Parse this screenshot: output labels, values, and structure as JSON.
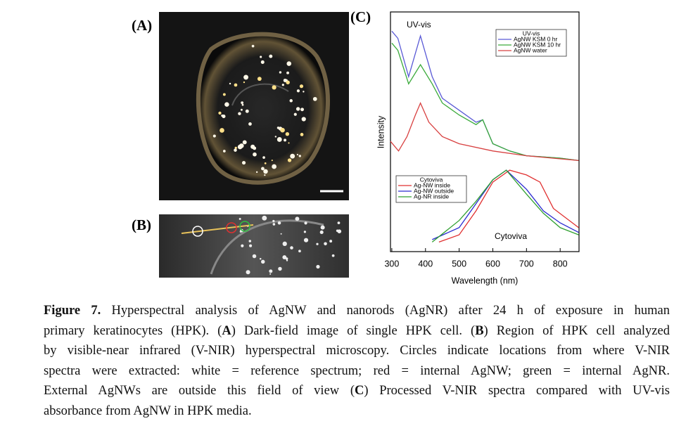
{
  "figure": {
    "panel_labels": [
      "(A)",
      "(B)",
      "(C)"
    ]
  },
  "chart_data": {
    "type": "line",
    "annotations": [
      "UV-vis",
      "Cytoviva"
    ],
    "xlabel": "Wavelength (nm)",
    "ylabel": "Intensity",
    "xlim": [
      296,
      856
    ],
    "ylim": [
      0,
      1
    ],
    "xticks": [
      300,
      400,
      500,
      600,
      700,
      800
    ],
    "series_groups": [
      {
        "title": "UV-vis",
        "series": [
          {
            "name": "AgNW KSM 0 hr",
            "color": "#5a5ad6",
            "x": [
              300,
              318,
              350,
              385,
              420,
              450,
              500,
              550,
              570,
              600,
              650,
              700,
              800,
              855
            ],
            "values": [
              0.92,
              0.89,
              0.73,
              0.9,
              0.73,
              0.64,
              0.59,
              0.54,
              0.55,
              0.45,
              0.42,
              0.4,
              0.39,
              0.38
            ]
          },
          {
            "name": "AgNW KSM 10 hr",
            "color": "#3aaa3a",
            "x": [
              300,
              318,
              350,
              385,
              420,
              450,
              500,
              550,
              570,
              600,
              650,
              700,
              800,
              855
            ],
            "values": [
              0.87,
              0.84,
              0.7,
              0.78,
              0.7,
              0.62,
              0.57,
              0.53,
              0.55,
              0.45,
              0.42,
              0.4,
              0.39,
              0.38
            ]
          },
          {
            "name": "AgNW water",
            "color": "#d84040",
            "x": [
              296,
              320,
              345,
              370,
              385,
              410,
              450,
              500,
              600,
              700,
              855
            ],
            "values": [
              0.46,
              0.42,
              0.48,
              0.57,
              0.62,
              0.54,
              0.48,
              0.45,
              0.42,
              0.4,
              0.38
            ]
          }
        ]
      },
      {
        "title": "Cytoviva",
        "series": [
          {
            "name": "Ag-NW inside",
            "color": "#e03030",
            "x": [
              440,
              500,
              550,
              600,
              650,
              700,
              740,
              780,
              855
            ],
            "values": [
              0.04,
              0.07,
              0.17,
              0.29,
              0.34,
              0.32,
              0.29,
              0.18,
              0.1
            ]
          },
          {
            "name": "Ag-NW outside",
            "color": "#2a2ad0",
            "x": [
              420,
              500,
              550,
              600,
              640,
              700,
              750,
              800,
              855
            ],
            "values": [
              0.05,
              0.1,
              0.2,
              0.3,
              0.34,
              0.26,
              0.17,
              0.12,
              0.08
            ]
          },
          {
            "name": "Ag-NR inside",
            "color": "#30a030",
            "x": [
              420,
              500,
              550,
              600,
              640,
              700,
              750,
              800,
              855
            ],
            "values": [
              0.04,
              0.13,
              0.21,
              0.3,
              0.34,
              0.24,
              0.16,
              0.1,
              0.07
            ]
          }
        ]
      }
    ]
  },
  "caption": {
    "lines": [
      [
        {
          "text": "Figure 7.",
          "bold": true
        },
        {
          "text": " Hyperspectral analysis of AgNW and nanorods (AgNR) after 24 h of exposure in human",
          "bold": false
        }
      ],
      [
        {
          "text": "primary keratinocytes (HPK). (",
          "bold": false
        },
        {
          "text": "A",
          "bold": true
        },
        {
          "text": ") Dark-field image of single HPK cell. (",
          "bold": false
        },
        {
          "text": "B",
          "bold": true
        },
        {
          "text": ") Region of HPK cell analyzed",
          "bold": false
        }
      ],
      [
        {
          "text": "by visible-near infrared (V-NIR) hyperspectral microscopy. Circles indicate locations from where V-NIR",
          "bold": false
        }
      ],
      [
        {
          "text": "spectra were extracted: white = reference spectrum; red = internal AgNW; green = internal AgNR.",
          "bold": false
        }
      ],
      [
        {
          "text": "External AgNWs are outside this field of view (",
          "bold": false
        },
        {
          "text": "C",
          "bold": true
        },
        {
          "text": ") Processed V-NIR spectra compared with UV-vis",
          "bold": false
        }
      ],
      [
        {
          "text": "absorbance from AgNW in HPK media.",
          "bold": false
        }
      ]
    ]
  }
}
